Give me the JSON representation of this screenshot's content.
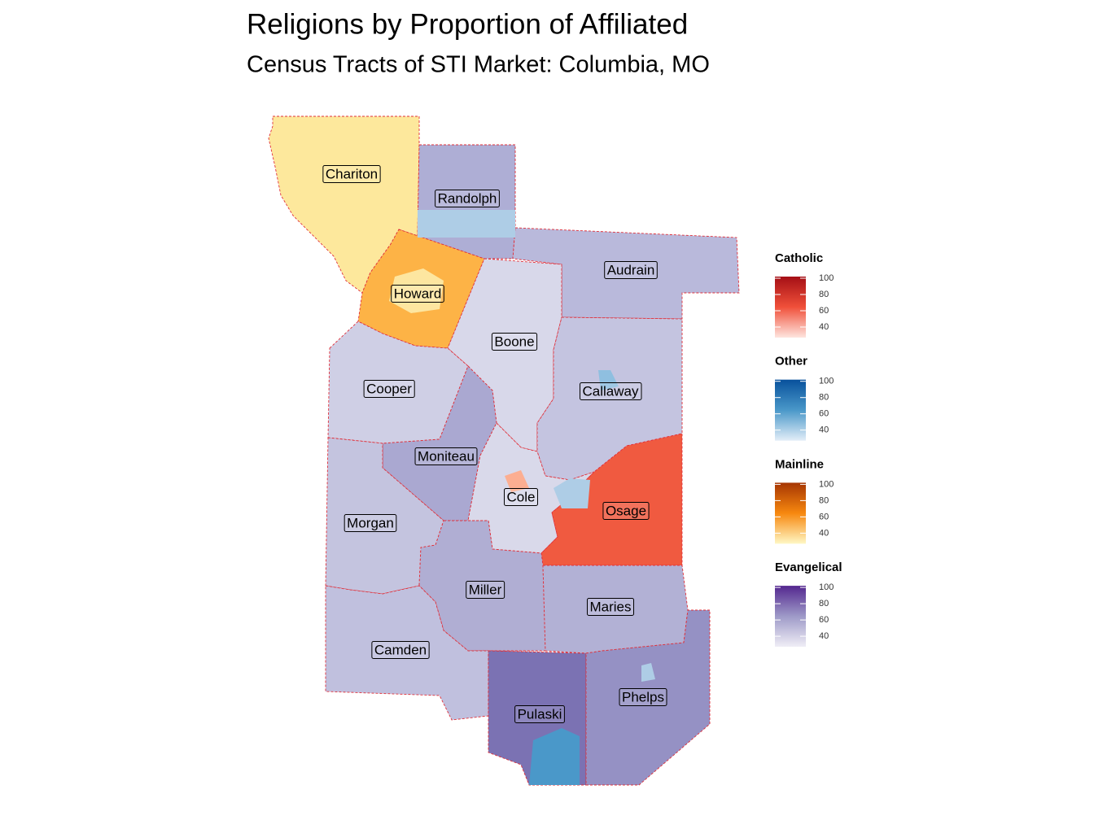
{
  "title": "Religions by Proportion of Affiliated",
  "subtitle": "Census Tracts of STI Market: Columbia, MO",
  "counties": [
    {
      "label": "Chariton",
      "color": "#fde89c"
    },
    {
      "label": "Randolph",
      "color": "#aeaed5"
    },
    {
      "label": "Howard",
      "color": "#fdb346"
    },
    {
      "label": "Audrain",
      "color": "#b9b9db"
    },
    {
      "label": "Boone",
      "color": "#d8d8ea"
    },
    {
      "label": "Cooper",
      "color": "#cfcfe5"
    },
    {
      "label": "Callaway",
      "color": "#c4c4e0"
    },
    {
      "label": "Moniteau",
      "color": "#aaa8d1"
    },
    {
      "label": "Cole",
      "color": "#d9d9ea"
    },
    {
      "label": "Osage",
      "color": "#f05a40"
    },
    {
      "label": "Morgan",
      "color": "#c4c4df"
    },
    {
      "label": "Miller",
      "color": "#b0aed3"
    },
    {
      "label": "Maries",
      "color": "#b2b1d5"
    },
    {
      "label": "Camden",
      "color": "#c0c0de"
    },
    {
      "label": "Pulaski",
      "color": "#7b72b3"
    },
    {
      "label": "Phelps",
      "color": "#9591c4"
    }
  ],
  "legends": [
    {
      "title": "Catholic",
      "range": [
        27,
        102
      ],
      "ticks": [
        100,
        80,
        60,
        40
      ],
      "colors": [
        "#fee5df",
        "#f0503a",
        "#a50f15"
      ]
    },
    {
      "title": "Other",
      "range": [
        27,
        102
      ],
      "ticks": [
        100,
        80,
        60,
        40
      ],
      "colors": [
        "#e3eef8",
        "#4a98c9",
        "#08519c"
      ]
    },
    {
      "title": "Mainline",
      "range": [
        27,
        102
      ],
      "ticks": [
        100,
        80,
        60,
        40
      ],
      "colors": [
        "#fff8c4",
        "#f7880f",
        "#a63603"
      ]
    },
    {
      "title": "Evangelical",
      "range": [
        27,
        102
      ],
      "ticks": [
        100,
        80,
        60,
        40
      ],
      "colors": [
        "#f0eef6",
        "#9e9ac8",
        "#54278f"
      ]
    }
  ]
}
